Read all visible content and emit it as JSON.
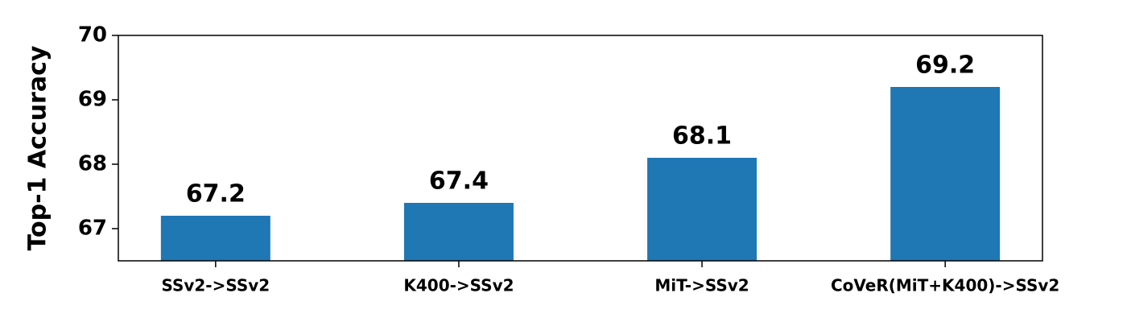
{
  "chart_data": {
    "type": "bar",
    "y_label": "Top-1 Accuracy",
    "categories": [
      "SSv2->SSv2",
      "K400->SSv2",
      "MiT->SSv2",
      "CoVeR(MiT+K400)->SSv2"
    ],
    "values": [
      67.2,
      67.4,
      68.1,
      69.2
    ],
    "color": "#1f77b4",
    "ylim": [
      66.5,
      70
    ],
    "yticks": [
      67,
      68,
      69,
      70
    ],
    "grid": false
  }
}
